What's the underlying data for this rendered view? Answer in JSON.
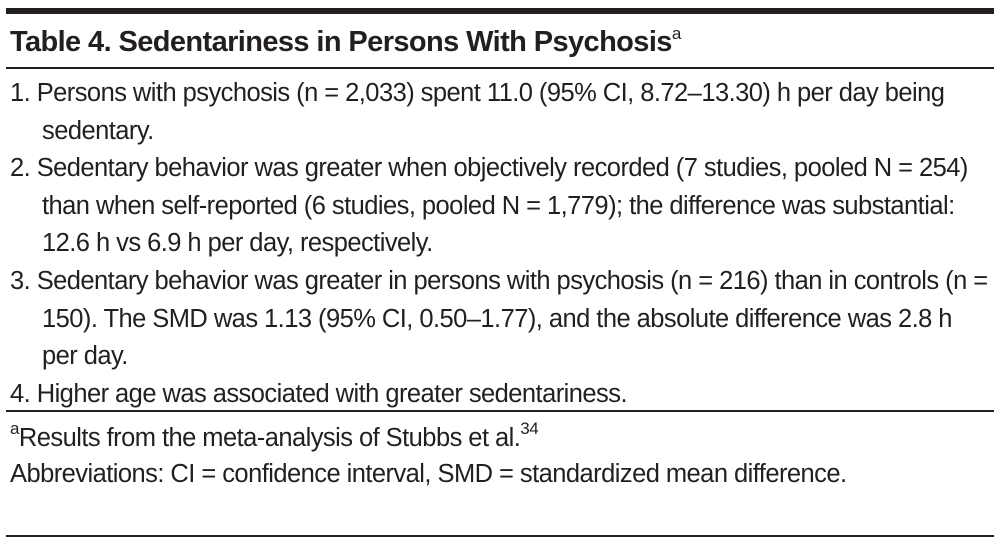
{
  "table_title": {
    "text": "Table 4. Sedentariness in Persons With Psychosis",
    "footnote_mark": "a"
  },
  "items": [
    "1. Persons with psychosis (n = 2,033) spent 11.0 (95% CI, 8.72–13.30) h per day being sedentary.",
    "2. Sedentary behavior was greater when objectively recorded (7 studies, pooled N = 254) than when self-reported (6 studies, pooled N = 1,779); the difference was substantial: 12.6 h vs 6.9 h per day, respectively.",
    "3. Sedentary behavior was greater in persons with psychosis (n = 216) than in controls (n = 150). The SMD was 1.13 (95% CI, 0.50–1.77), and the absolute difference was 2.8 h per day.",
    "4. Higher age was associated with greater sedentariness."
  ],
  "footnotes": {
    "mark": "a",
    "text": "Results from the meta-analysis of Stubbs et al.",
    "reference": "34",
    "abbreviations": "Abbreviations: CI = confidence interval, SMD = standardized mean difference."
  }
}
